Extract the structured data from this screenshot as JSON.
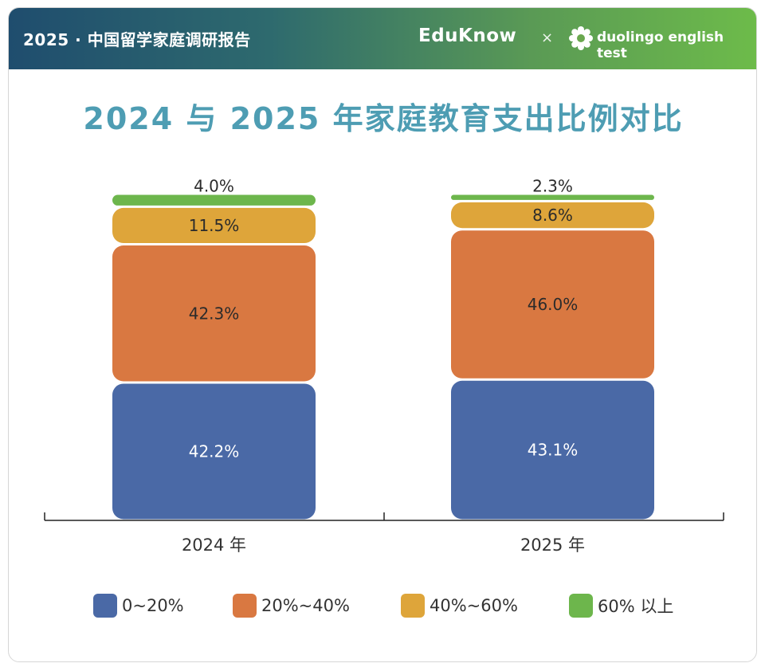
{
  "header": {
    "title": "2025 · 中国留学家庭调研报告",
    "brand_primary": "EduKnow",
    "brand_separator": "×",
    "brand_secondary": "duolingo english test"
  },
  "colors": {
    "title": "#4e9db3",
    "series": [
      "#4a69a6",
      "#d97841",
      "#dea53a",
      "#6db64c"
    ]
  },
  "chart_data": {
    "type": "bar",
    "stacked": true,
    "title": "2024 与 2025 年家庭教育支出比例对比",
    "categories": [
      "2024 年",
      "2025 年"
    ],
    "series": [
      {
        "name": "0~20%",
        "values": [
          42.2,
          43.1
        ],
        "labels": [
          "42.2%",
          "43.1%"
        ]
      },
      {
        "name": "20%~40%",
        "values": [
          42.3,
          46.0
        ],
        "labels": [
          "42.3%",
          "46.0%"
        ]
      },
      {
        "name": "40%~60%",
        "values": [
          11.5,
          8.6
        ],
        "labels": [
          "11.5%",
          "8.6%"
        ]
      },
      {
        "name": "60% 以上",
        "values": [
          4.0,
          2.3
        ],
        "labels": [
          "4.0%",
          "2.3%"
        ]
      }
    ],
    "ylim": [
      0,
      100
    ],
    "grid": false,
    "legend_position": "bottom"
  }
}
